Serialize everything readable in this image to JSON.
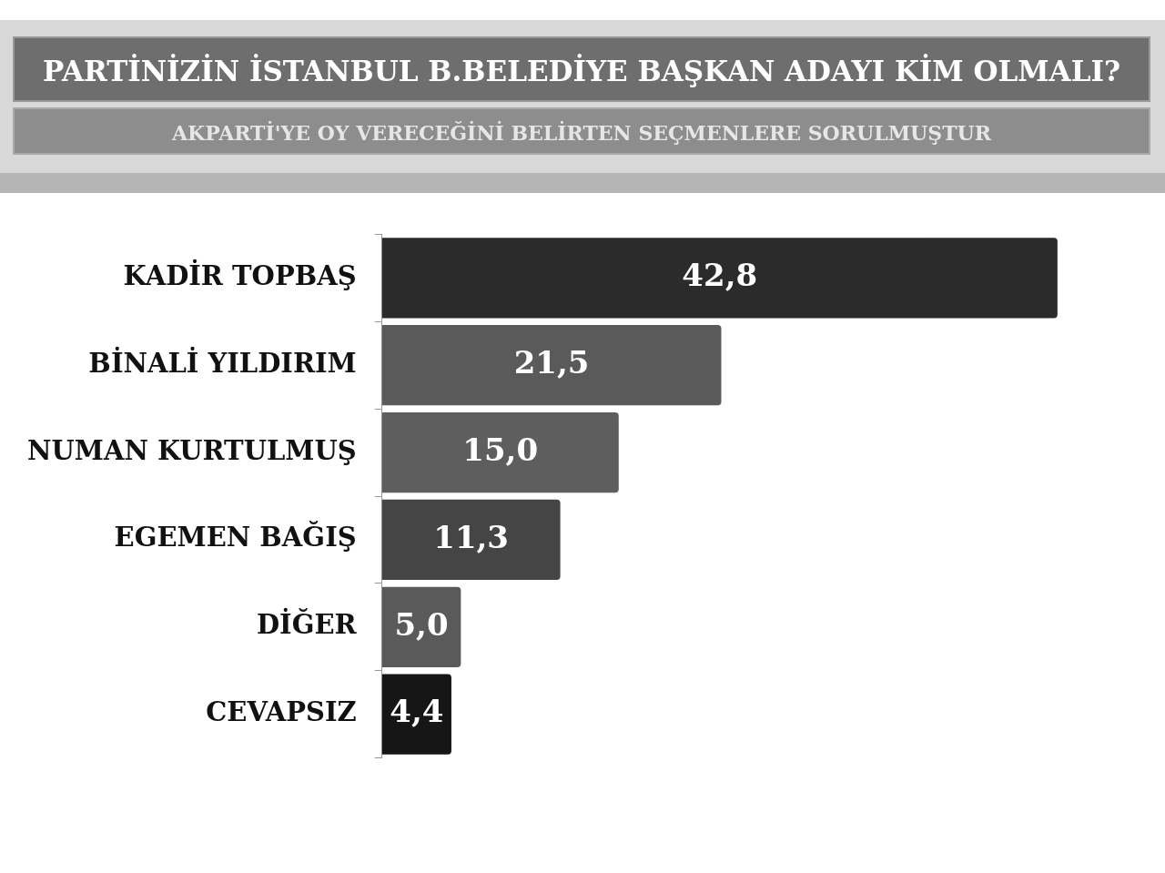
{
  "chart_data": {
    "type": "bar",
    "orientation": "horizontal",
    "title": "PARTİNİZİN İSTANBUL B.BELEDİYE BAŞKAN ADAYI KİM OLMALI?",
    "subtitle": "AKPARTİ'YE OY VERECEĞİNİ BELİRTEN SEÇMENLERE SORULMUŞTUR",
    "categories": [
      "KADİR TOPBAŞ",
      "BİNALİ YILDIRIM",
      "NUMAN KURTULMUŞ",
      "EGEMEN BAĞIŞ",
      "DİĞER",
      "CEVAPSIZ"
    ],
    "values": [
      42.8,
      21.5,
      15.0,
      11.3,
      5.0,
      4.4
    ],
    "value_labels": [
      "42,8",
      "21,5",
      "15,0",
      "11,3",
      "5,0",
      "4,4"
    ],
    "colors": [
      "#2b2b2b",
      "#5a5a5a",
      "#5e5e5e",
      "#454545",
      "#5a5a5a",
      "#161616"
    ],
    "grid": false,
    "legend": false,
    "tick_labels": "y"
  }
}
